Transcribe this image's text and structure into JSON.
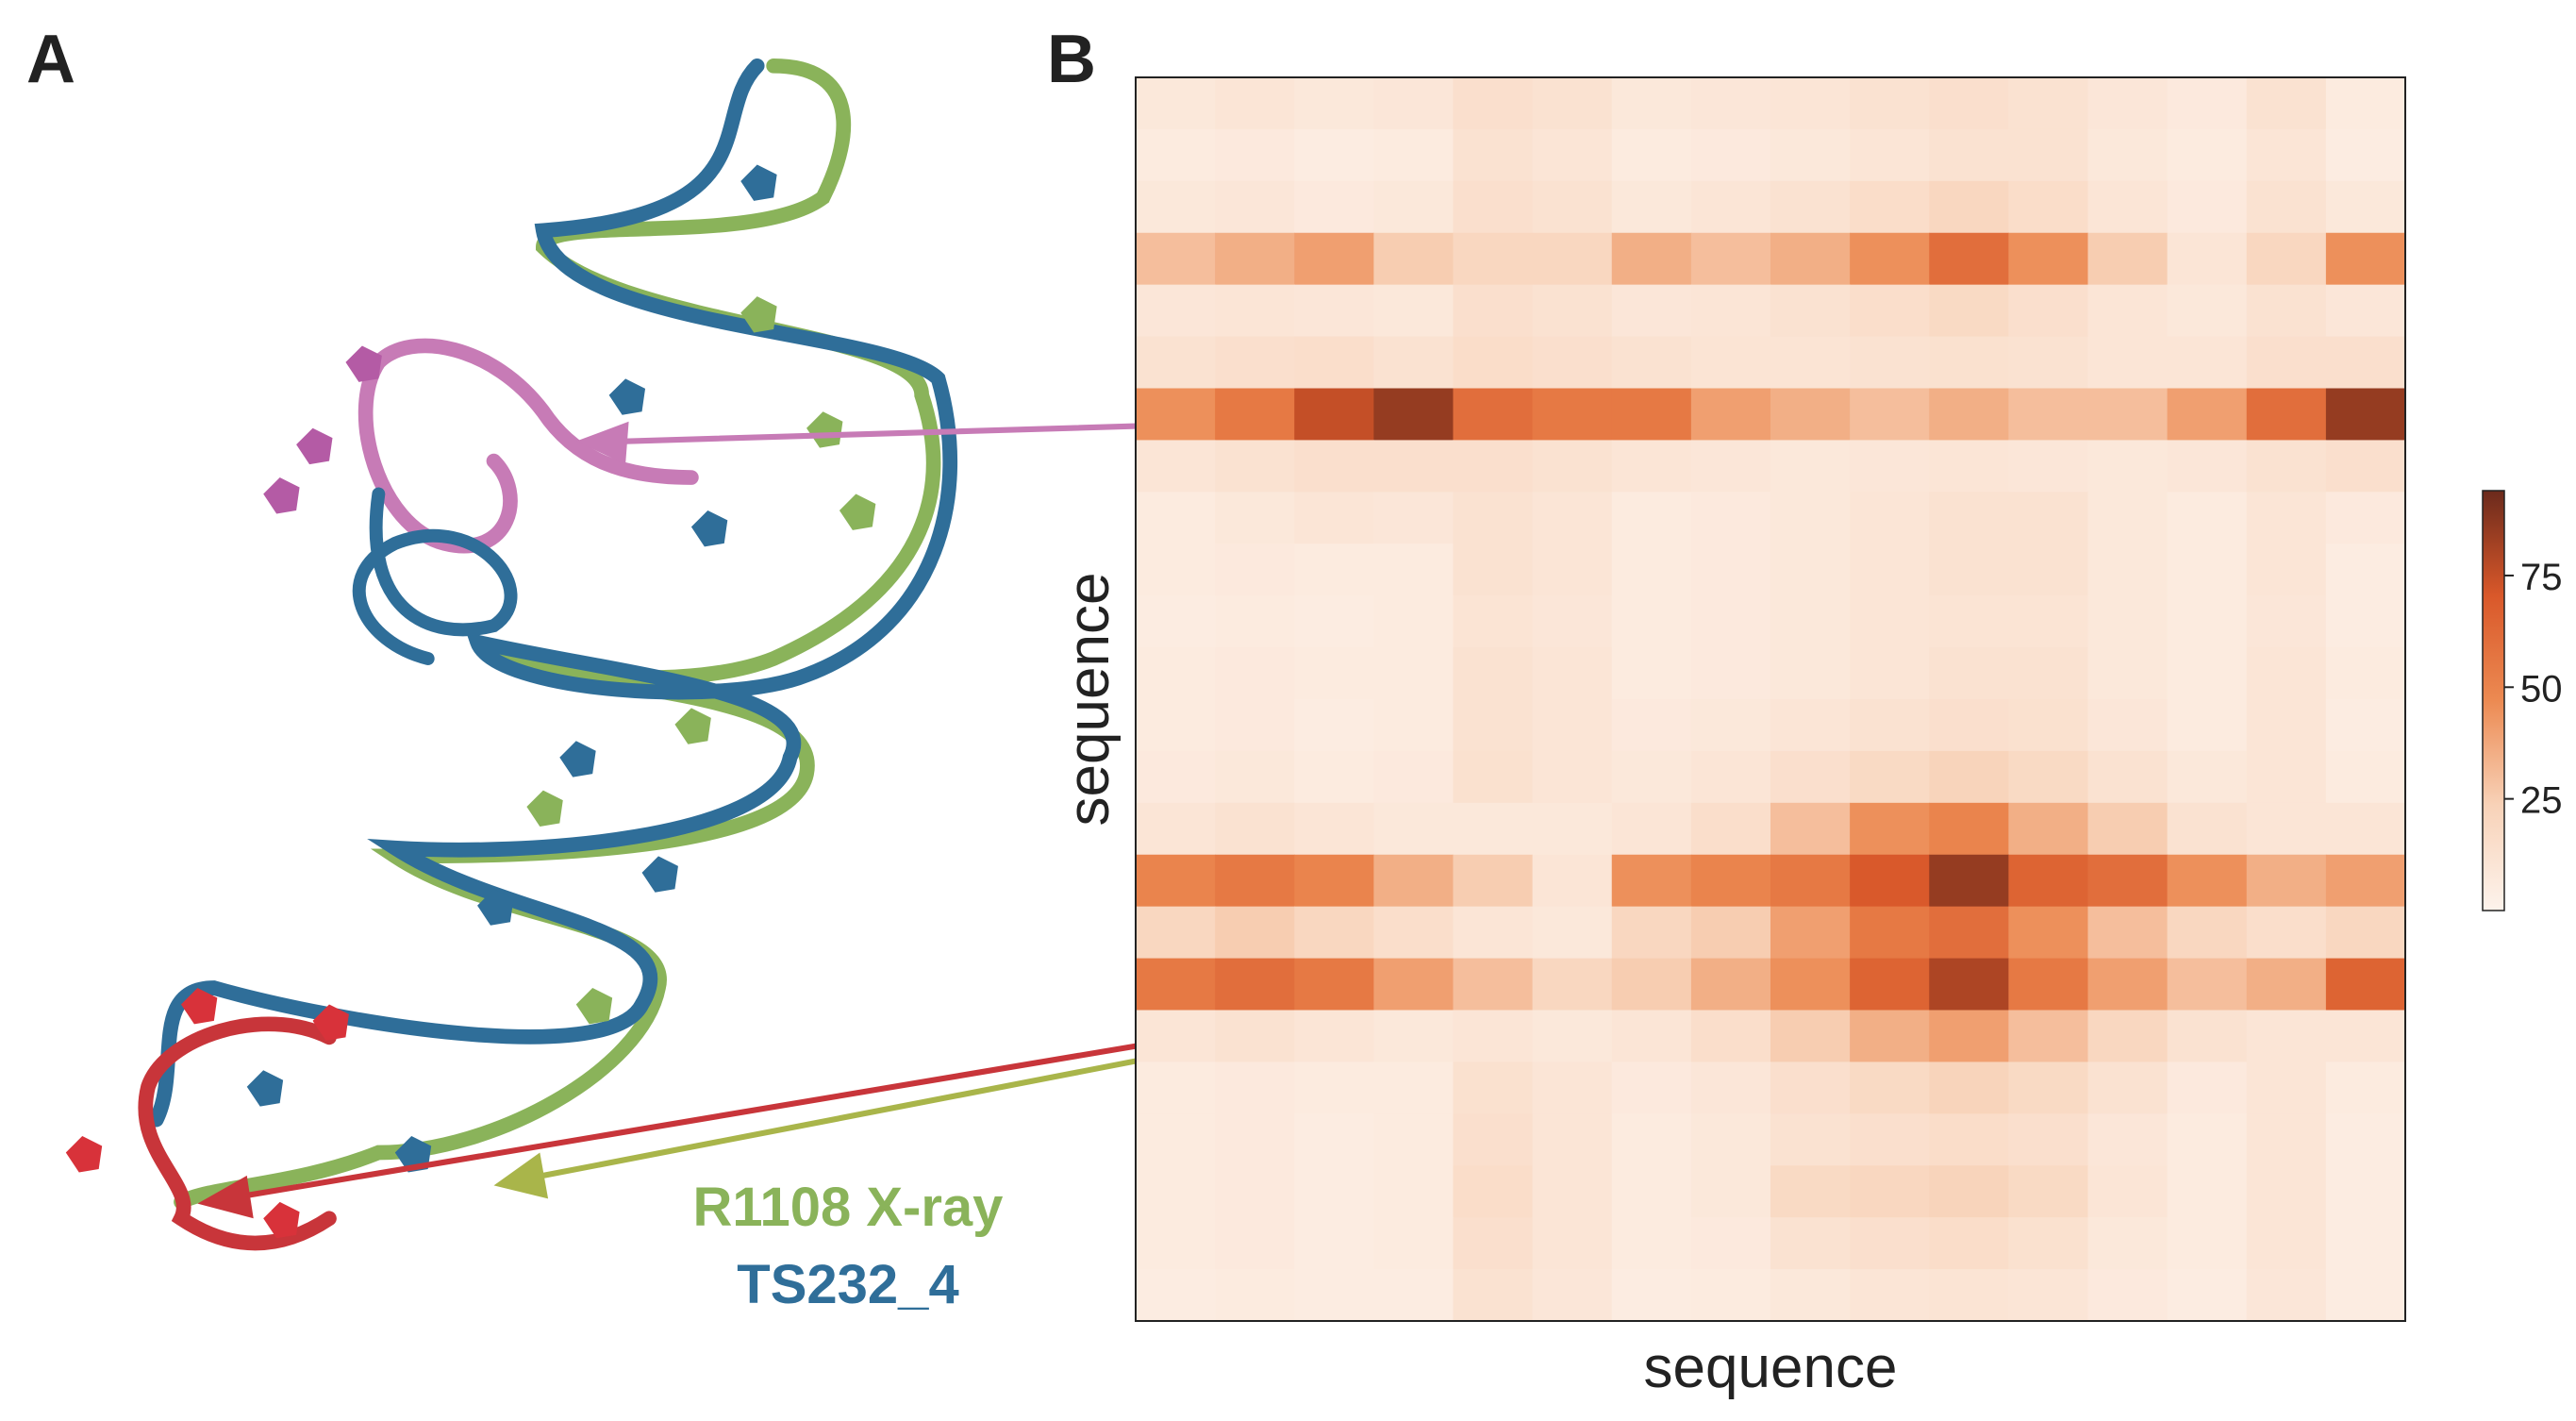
{
  "panel_labels": [
    "A",
    "B"
  ],
  "structure_legend": [
    {
      "name": "R1108 X-ray",
      "color": "#8ab35a"
    },
    {
      "name": "TS232_4",
      "color": "#2f6e99"
    }
  ],
  "chart_data": {
    "type": "heatmap",
    "xlabel": "sequence",
    "ylabel": "sequence",
    "colorscale": [
      "#fdf3ec",
      "#f8d2b8",
      "#ec8a52",
      "#d9582a",
      "#6b2a1c"
    ],
    "zlim": [
      0,
      94
    ],
    "colorbar_ticks": [
      25,
      50,
      75
    ],
    "z": [
      [
        8,
        10,
        8,
        9,
        14,
        12,
        8,
        9,
        10,
        12,
        14,
        12,
        9,
        7,
        12,
        6
      ],
      [
        6,
        7,
        5,
        6,
        12,
        10,
        6,
        7,
        8,
        10,
        12,
        12,
        8,
        6,
        10,
        5
      ],
      [
        8,
        9,
        7,
        8,
        14,
        12,
        8,
        10,
        12,
        16,
        20,
        16,
        10,
        7,
        12,
        8
      ],
      [
        30,
        35,
        40,
        25,
        20,
        20,
        35,
        30,
        35,
        45,
        60,
        45,
        25,
        10,
        20,
        45
      ],
      [
        9,
        10,
        9,
        8,
        14,
        12,
        9,
        10,
        12,
        15,
        18,
        14,
        10,
        8,
        12,
        9
      ],
      [
        12,
        14,
        15,
        12,
        16,
        14,
        12,
        11,
        11,
        12,
        13,
        12,
        10,
        10,
        14,
        14
      ],
      [
        45,
        55,
        75,
        85,
        60,
        55,
        55,
        40,
        35,
        30,
        35,
        30,
        30,
        40,
        60,
        85
      ],
      [
        10,
        12,
        14,
        14,
        14,
        12,
        10,
        9,
        8,
        9,
        10,
        9,
        8,
        9,
        12,
        14
      ],
      [
        6,
        8,
        10,
        9,
        12,
        10,
        6,
        7,
        8,
        10,
        12,
        12,
        8,
        6,
        10,
        7
      ],
      [
        6,
        7,
        6,
        6,
        12,
        10,
        6,
        7,
        8,
        10,
        12,
        12,
        8,
        6,
        10,
        5
      ],
      [
        5,
        6,
        5,
        6,
        11,
        9,
        6,
        7,
        8,
        10,
        11,
        11,
        8,
        6,
        9,
        5
      ],
      [
        6,
        7,
        6,
        6,
        12,
        10,
        6,
        7,
        8,
        10,
        12,
        12,
        8,
        6,
        10,
        6
      ],
      [
        6,
        7,
        5,
        6,
        12,
        10,
        7,
        8,
        10,
        12,
        14,
        13,
        9,
        6,
        10,
        5
      ],
      [
        7,
        8,
        6,
        7,
        13,
        10,
        8,
        10,
        14,
        18,
        22,
        18,
        12,
        8,
        10,
        6
      ],
      [
        10,
        12,
        10,
        8,
        8,
        8,
        10,
        15,
        30,
        45,
        50,
        35,
        25,
        12,
        10,
        10
      ],
      [
        50,
        55,
        50,
        35,
        25,
        10,
        45,
        50,
        55,
        70,
        85,
        65,
        60,
        45,
        35,
        40
      ],
      [
        20,
        25,
        20,
        15,
        10,
        8,
        20,
        25,
        40,
        55,
        60,
        45,
        30,
        20,
        15,
        20
      ],
      [
        55,
        60,
        55,
        40,
        30,
        20,
        25,
        35,
        45,
        65,
        80,
        55,
        40,
        30,
        35,
        65
      ],
      [
        10,
        12,
        10,
        8,
        10,
        8,
        10,
        15,
        25,
        35,
        40,
        30,
        20,
        12,
        10,
        10
      ],
      [
        6,
        7,
        6,
        6,
        13,
        10,
        7,
        9,
        14,
        18,
        22,
        18,
        12,
        7,
        10,
        6
      ],
      [
        6,
        7,
        5,
        6,
        14,
        10,
        6,
        8,
        12,
        14,
        16,
        14,
        9,
        6,
        10,
        5
      ],
      [
        6,
        7,
        5,
        6,
        16,
        10,
        6,
        8,
        18,
        20,
        22,
        18,
        10,
        6,
        10,
        5
      ],
      [
        6,
        7,
        5,
        6,
        14,
        10,
        6,
        7,
        12,
        14,
        16,
        13,
        8,
        6,
        10,
        5
      ],
      [
        5,
        6,
        5,
        5,
        12,
        9,
        5,
        6,
        8,
        10,
        11,
        10,
        7,
        5,
        9,
        5
      ]
    ]
  }
}
